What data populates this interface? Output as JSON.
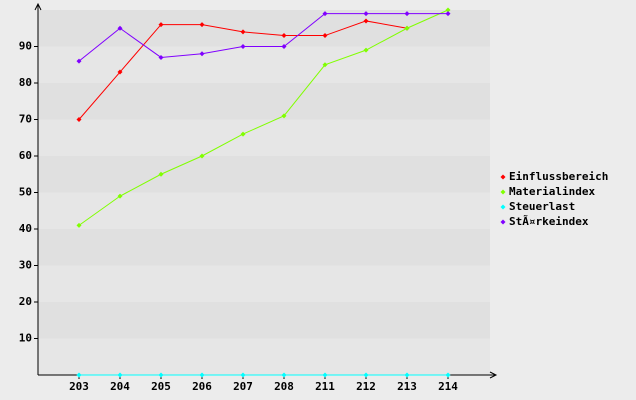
{
  "chart_data": {
    "type": "line",
    "categories": [
      "203",
      "204",
      "205",
      "206",
      "207",
      "208",
      "211",
      "212",
      "213",
      "214"
    ],
    "series": [
      {
        "name": "Einflussbereich",
        "color": "#ff0000",
        "values": [
          70,
          83,
          96,
          96,
          94,
          93,
          93,
          97,
          95,
          null
        ]
      },
      {
        "name": "Materialindex",
        "color": "#80ff00",
        "values": [
          41,
          49,
          55,
          60,
          66,
          71,
          85,
          89,
          95,
          100
        ]
      },
      {
        "name": "Steuerlast",
        "color": "#00ffff",
        "values": [
          0,
          0,
          0,
          0,
          0,
          0,
          0,
          0,
          0,
          0
        ]
      },
      {
        "name": "StÃ¤rkeindex",
        "color": "#8000ff",
        "values": [
          86,
          95,
          87,
          88,
          90,
          90,
          99,
          99,
          99,
          99
        ]
      }
    ],
    "ylim": [
      0,
      100
    ],
    "yticks": [
      10,
      20,
      30,
      40,
      50,
      60,
      70,
      80,
      90
    ],
    "grid": true
  }
}
